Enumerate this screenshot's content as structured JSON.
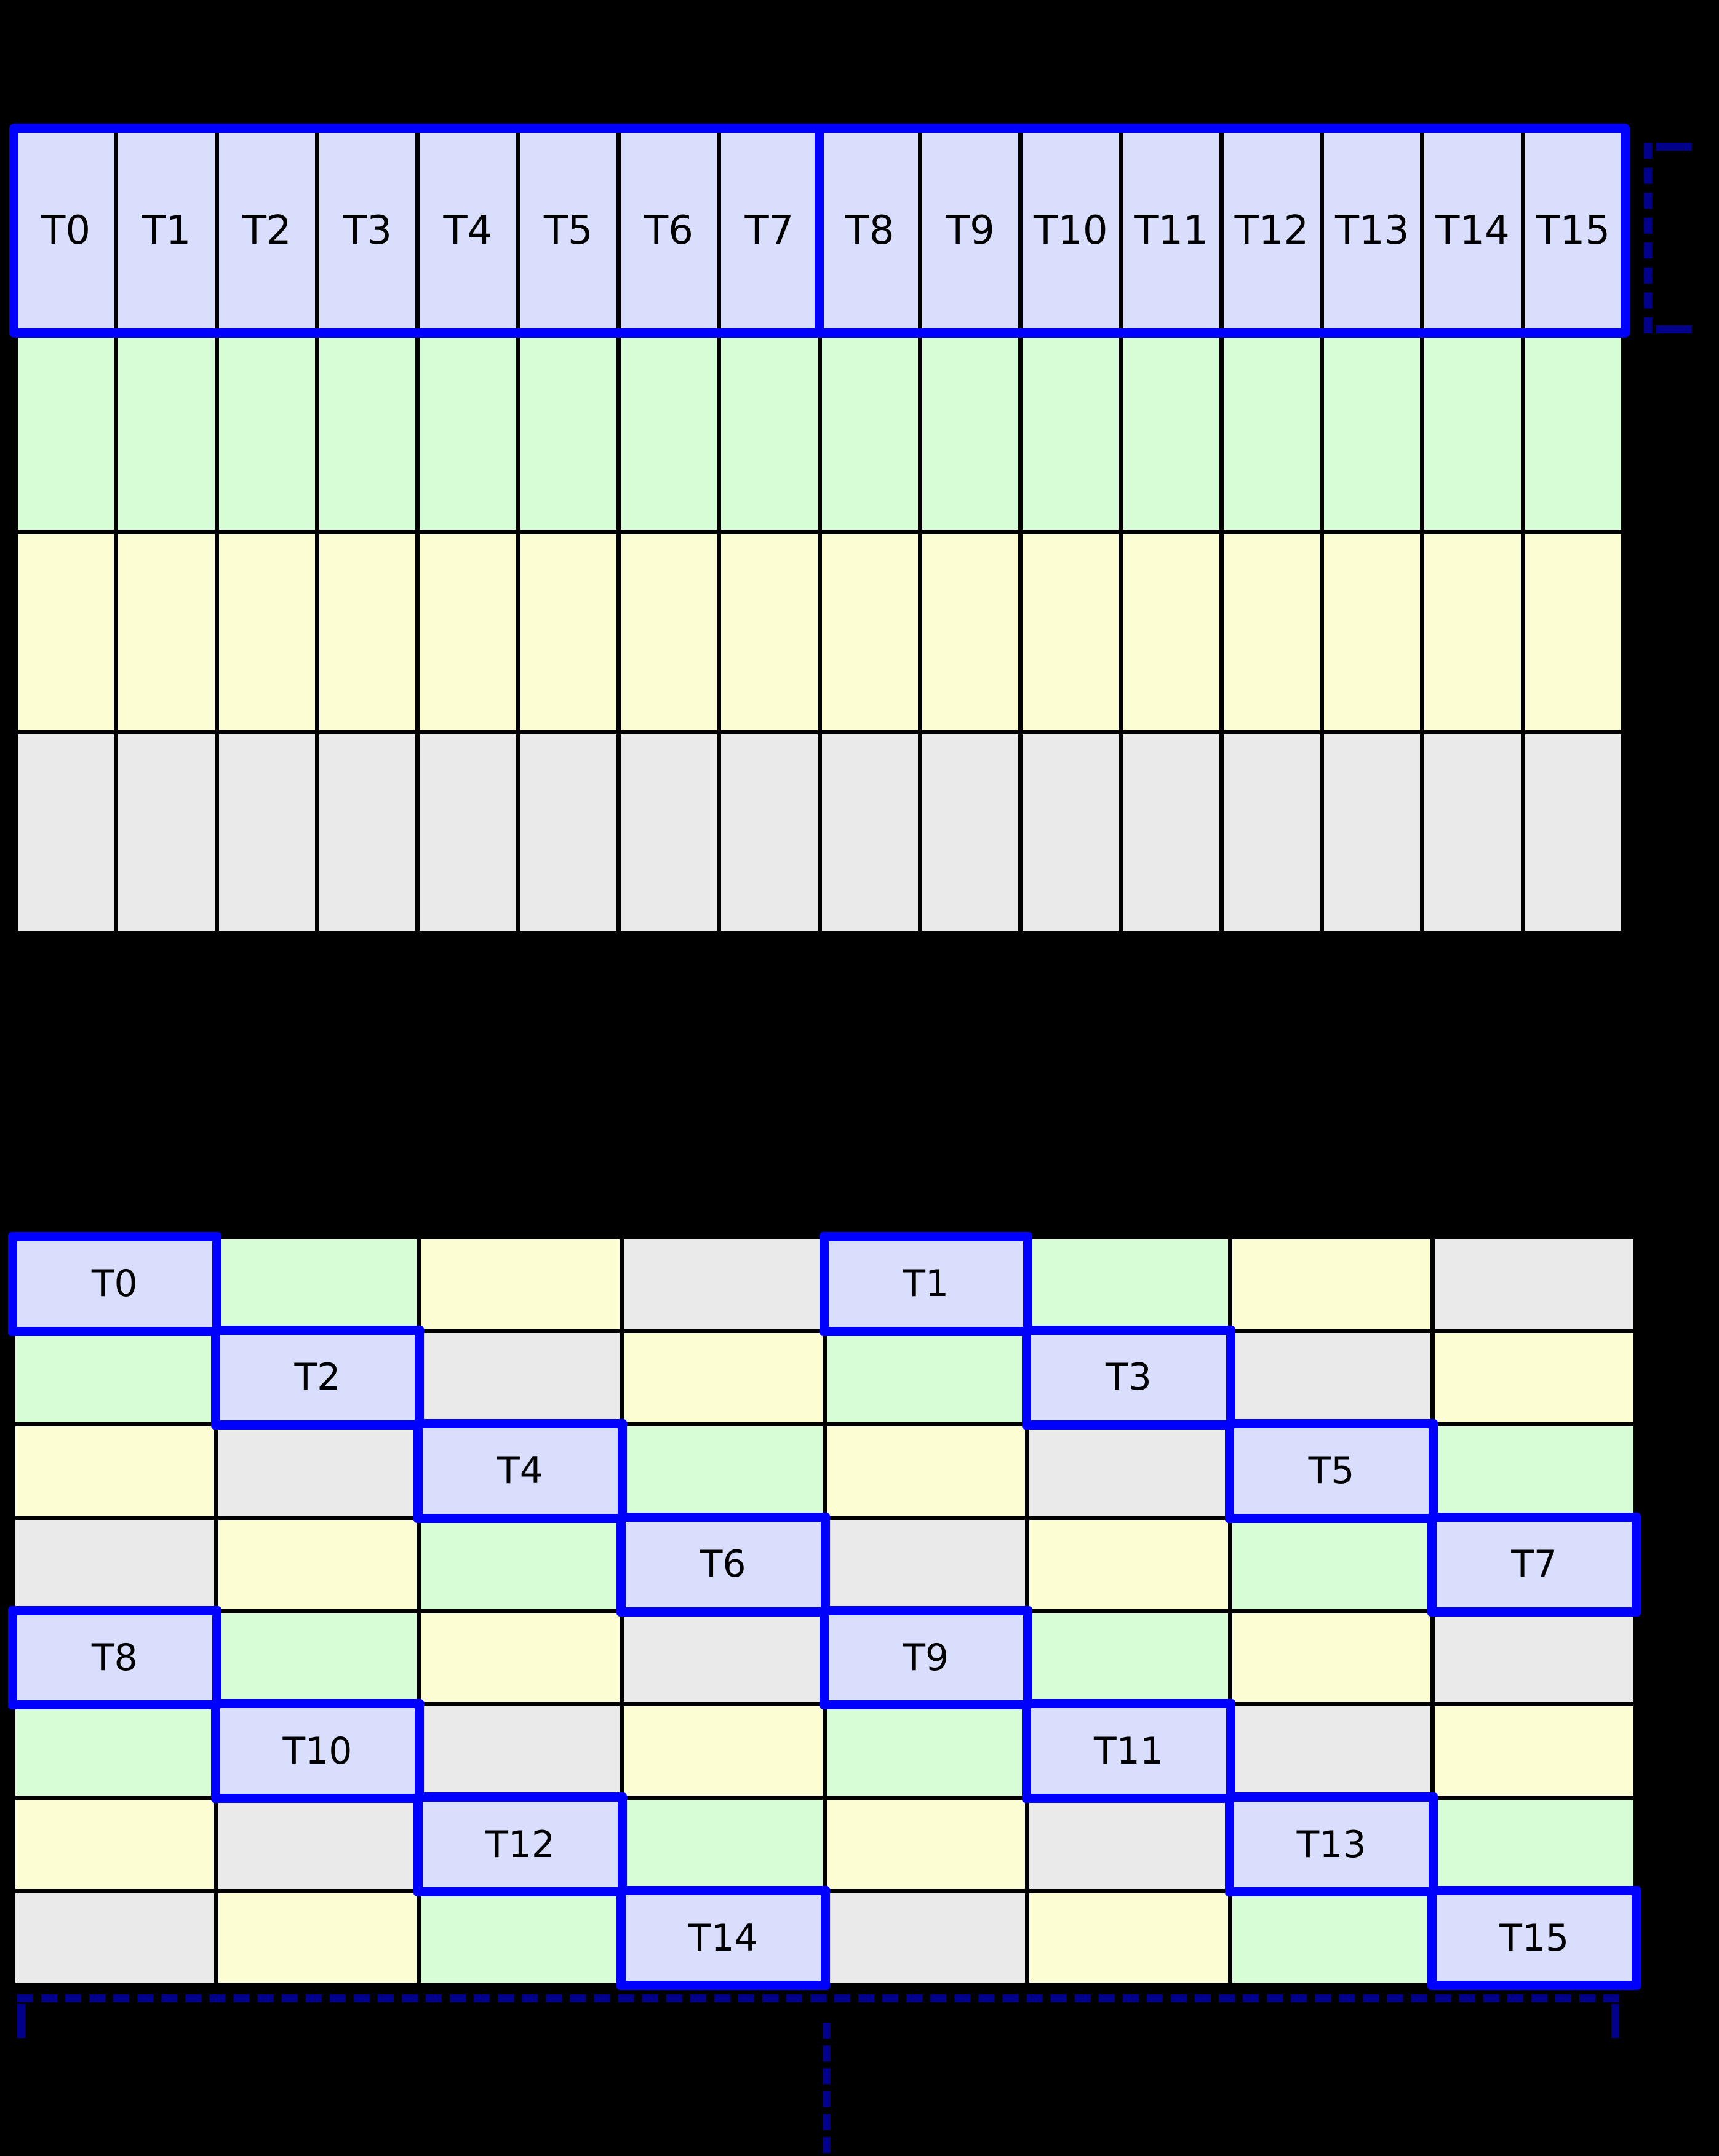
{
  "colors": {
    "lavender": "#d8defb",
    "green": "#d6fdd6",
    "yellow": "#fdfdd4",
    "gray": "#eaeaeb",
    "highlight_border": "#0000ff",
    "bracket": "#00008b",
    "gridline": "#000000",
    "background": "#000000",
    "label_color": "#000000"
  },
  "top_grid": {
    "rows": [
      [
        {
          "color": "lavender",
          "label": "T0"
        },
        {
          "color": "lavender",
          "label": "T1"
        },
        {
          "color": "lavender",
          "label": "T2"
        },
        {
          "color": "lavender",
          "label": "T3"
        },
        {
          "color": "lavender",
          "label": "T4"
        },
        {
          "color": "lavender",
          "label": "T5"
        },
        {
          "color": "lavender",
          "label": "T6"
        },
        {
          "color": "lavender",
          "label": "T7"
        },
        {
          "color": "lavender",
          "label": "T8"
        },
        {
          "color": "lavender",
          "label": "T9"
        },
        {
          "color": "lavender",
          "label": "T10"
        },
        {
          "color": "lavender",
          "label": "T11"
        },
        {
          "color": "lavender",
          "label": "T12"
        },
        {
          "color": "lavender",
          "label": "T13"
        },
        {
          "color": "lavender",
          "label": "T14"
        },
        {
          "color": "lavender",
          "label": "T15"
        }
      ],
      [
        {
          "color": "green"
        },
        {
          "color": "green"
        },
        {
          "color": "green"
        },
        {
          "color": "green"
        },
        {
          "color": "green"
        },
        {
          "color": "green"
        },
        {
          "color": "green"
        },
        {
          "color": "green"
        },
        {
          "color": "green"
        },
        {
          "color": "green"
        },
        {
          "color": "green"
        },
        {
          "color": "green"
        },
        {
          "color": "green"
        },
        {
          "color": "green"
        },
        {
          "color": "green"
        },
        {
          "color": "green"
        }
      ],
      [
        {
          "color": "yellow"
        },
        {
          "color": "yellow"
        },
        {
          "color": "yellow"
        },
        {
          "color": "yellow"
        },
        {
          "color": "yellow"
        },
        {
          "color": "yellow"
        },
        {
          "color": "yellow"
        },
        {
          "color": "yellow"
        },
        {
          "color": "yellow"
        },
        {
          "color": "yellow"
        },
        {
          "color": "yellow"
        },
        {
          "color": "yellow"
        },
        {
          "color": "yellow"
        },
        {
          "color": "yellow"
        },
        {
          "color": "yellow"
        },
        {
          "color": "yellow"
        }
      ],
      [
        {
          "color": "gray"
        },
        {
          "color": "gray"
        },
        {
          "color": "gray"
        },
        {
          "color": "gray"
        },
        {
          "color": "gray"
        },
        {
          "color": "gray"
        },
        {
          "color": "gray"
        },
        {
          "color": "gray"
        },
        {
          "color": "gray"
        },
        {
          "color": "gray"
        },
        {
          "color": "gray"
        },
        {
          "color": "gray"
        },
        {
          "color": "gray"
        },
        {
          "color": "gray"
        },
        {
          "color": "gray"
        },
        {
          "color": "gray"
        }
      ]
    ],
    "half_group_split_after_column": 8
  },
  "bottom_grid": {
    "rows": [
      [
        {
          "color": "lavender",
          "label": "T0",
          "highlight": true
        },
        {
          "color": "green"
        },
        {
          "color": "yellow"
        },
        {
          "color": "gray"
        },
        {
          "color": "lavender",
          "label": "T1",
          "highlight": true
        },
        {
          "color": "green"
        },
        {
          "color": "yellow"
        },
        {
          "color": "gray"
        }
      ],
      [
        {
          "color": "green"
        },
        {
          "color": "lavender",
          "label": "T2",
          "highlight": true
        },
        {
          "color": "gray"
        },
        {
          "color": "yellow"
        },
        {
          "color": "green"
        },
        {
          "color": "lavender",
          "label": "T3",
          "highlight": true
        },
        {
          "color": "gray"
        },
        {
          "color": "yellow"
        }
      ],
      [
        {
          "color": "yellow"
        },
        {
          "color": "gray"
        },
        {
          "color": "lavender",
          "label": "T4",
          "highlight": true
        },
        {
          "color": "green"
        },
        {
          "color": "yellow"
        },
        {
          "color": "gray"
        },
        {
          "color": "lavender",
          "label": "T5",
          "highlight": true
        },
        {
          "color": "green"
        }
      ],
      [
        {
          "color": "gray"
        },
        {
          "color": "yellow"
        },
        {
          "color": "green"
        },
        {
          "color": "lavender",
          "label": "T6",
          "highlight": true
        },
        {
          "color": "gray"
        },
        {
          "color": "yellow"
        },
        {
          "color": "green"
        },
        {
          "color": "lavender",
          "label": "T7",
          "highlight": true
        }
      ],
      [
        {
          "color": "lavender",
          "label": "T8",
          "highlight": true
        },
        {
          "color": "green"
        },
        {
          "color": "yellow"
        },
        {
          "color": "gray"
        },
        {
          "color": "lavender",
          "label": "T9",
          "highlight": true
        },
        {
          "color": "green"
        },
        {
          "color": "yellow"
        },
        {
          "color": "gray"
        }
      ],
      [
        {
          "color": "green"
        },
        {
          "color": "lavender",
          "label": "T10",
          "highlight": true
        },
        {
          "color": "gray"
        },
        {
          "color": "yellow"
        },
        {
          "color": "green"
        },
        {
          "color": "lavender",
          "label": "T11",
          "highlight": true
        },
        {
          "color": "gray"
        },
        {
          "color": "yellow"
        }
      ],
      [
        {
          "color": "yellow"
        },
        {
          "color": "gray"
        },
        {
          "color": "lavender",
          "label": "T12",
          "highlight": true
        },
        {
          "color": "green"
        },
        {
          "color": "yellow"
        },
        {
          "color": "gray"
        },
        {
          "color": "lavender",
          "label": "T13",
          "highlight": true
        },
        {
          "color": "green"
        }
      ],
      [
        {
          "color": "gray"
        },
        {
          "color": "yellow"
        },
        {
          "color": "green"
        },
        {
          "color": "lavender",
          "label": "T14",
          "highlight": true
        },
        {
          "color": "gray"
        },
        {
          "color": "yellow"
        },
        {
          "color": "green"
        },
        {
          "color": "lavender",
          "label": "T15",
          "highlight": true
        }
      ]
    ]
  }
}
